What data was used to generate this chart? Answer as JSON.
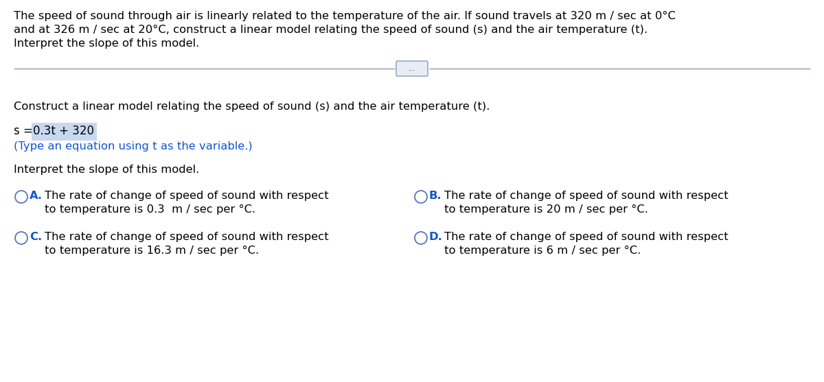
{
  "bg_color": "#ffffff",
  "intro_line1": "The speed of sound through air is linearly related to the temperature of the air. If sound travels at 320 m / sec at 0°C",
  "intro_line2": "and at 326 m / sec at 20°C, construct a linear model relating the speed of sound (s) and the air temperature (t).",
  "intro_line3": "Interpret the slope of this model.",
  "divider_dots": "...",
  "section1": "Construct a linear model relating the speed of sound (s) and the air temperature (t).",
  "eq_prefix": "s = ",
  "eq_value": "0.3t + 320",
  "eq_hint": "(Type an equation using t as the variable.)",
  "section2": "Interpret the slope of this model.",
  "optA_l1": "The rate of change of speed of sound with respect",
  "optA_l2": "to temperature is 0.3  m / sec per °C.",
  "optB_l1": "The rate of change of speed of sound with respect",
  "optB_l2": "to temperature is 20 m / sec per °C.",
  "optC_l1": "The rate of change of speed of sound with respect",
  "optC_l2": "to temperature is 16.3 m / sec per °C.",
  "optD_l1": "The rate of change of speed of sound with respect",
  "optD_l2": "to temperature is 6 m / sec per °C.",
  "black": "#000000",
  "blue": "#1155cc",
  "eq_bg": "#c8d8f0",
  "circle_ec": "#5577bb",
  "divider_color": "#8899bb",
  "btn_bg": "#e8edf5",
  "btn_ec": "#8899bb",
  "fs": 11.8,
  "fs_eq": 12.0
}
